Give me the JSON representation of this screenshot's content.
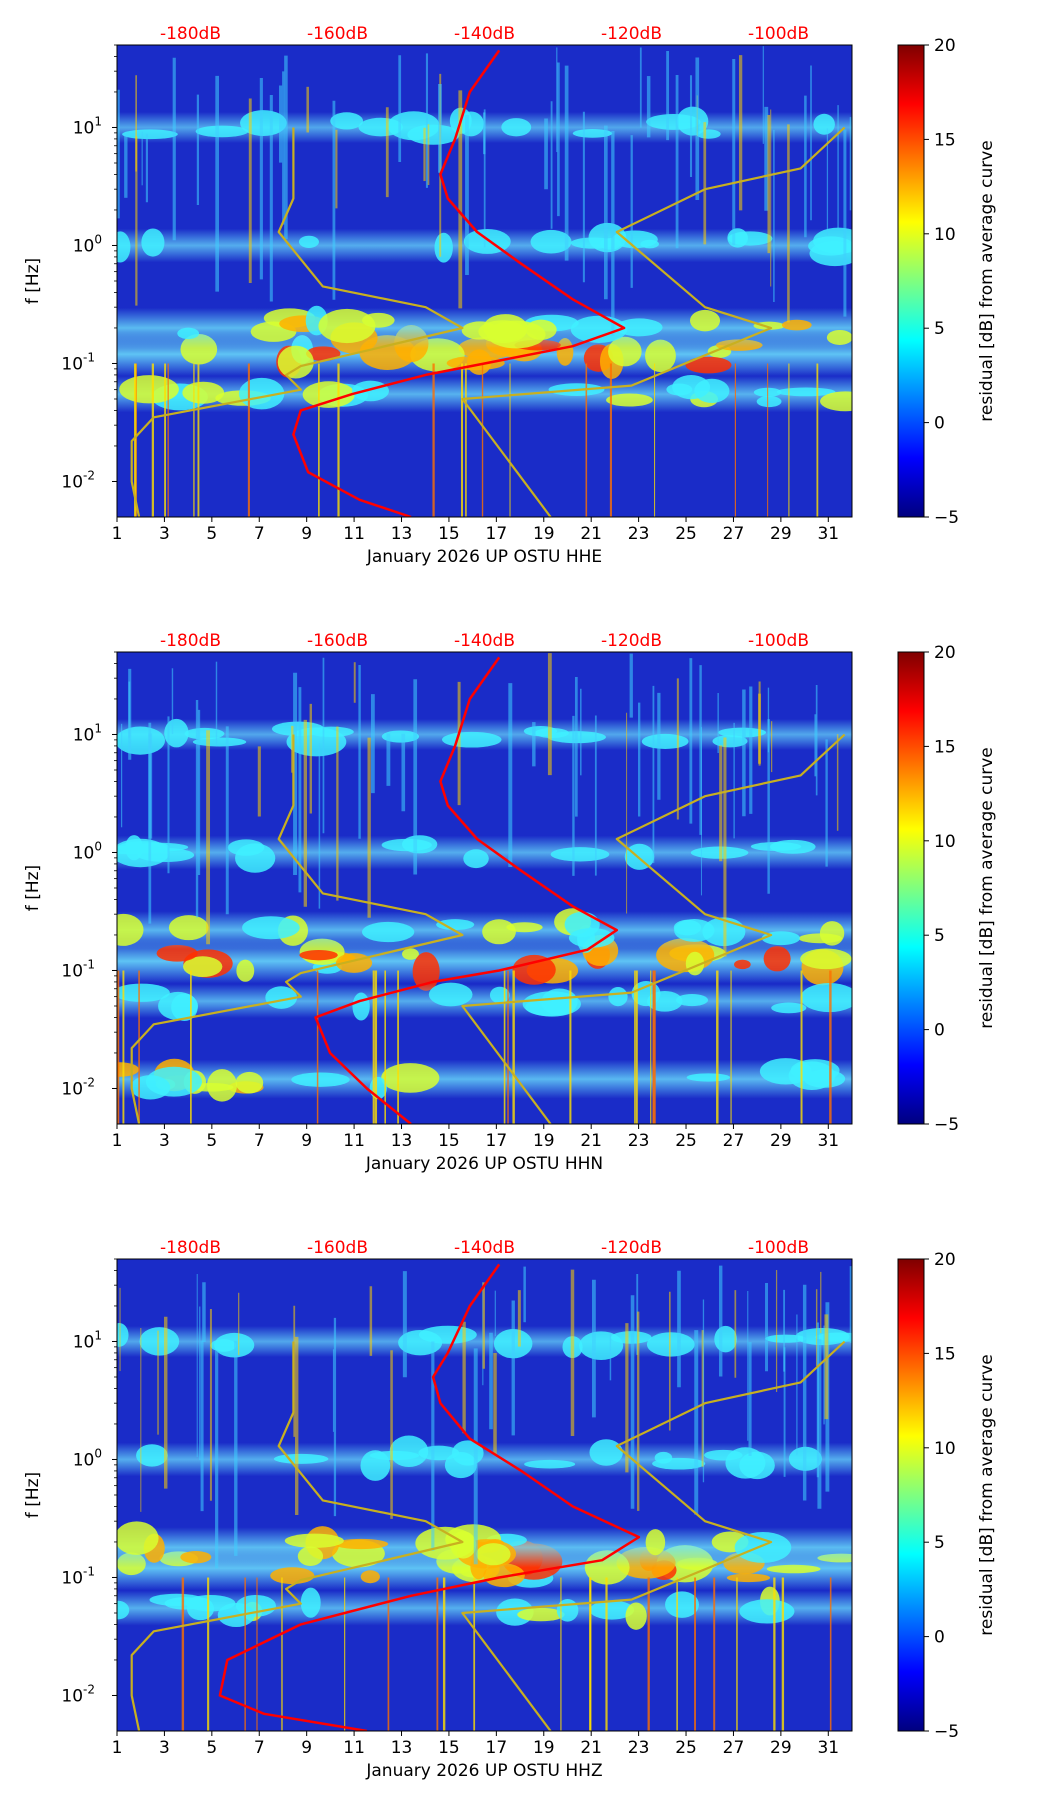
{
  "figure": {
    "month": "January 2026",
    "network": "UP",
    "station": "OSTU"
  },
  "colormap": {
    "stops": [
      "#00007f",
      "#0000ff",
      "#007fff",
      "#00ffff",
      "#7fff7f",
      "#ffff00",
      "#ff7f00",
      "#ff0000",
      "#7f0000"
    ],
    "curve_colors": {
      "psd": "#ff0000",
      "noise_models": "#c8b020"
    },
    "label_color": "#ff0000"
  },
  "chart_data": [
    {
      "type": "heatmap",
      "channel": "HHE",
      "xlabel": "January 2026 UP OSTU  HHE",
      "ylabel": "f [Hz]",
      "x_ticks": [
        "1",
        "3",
        "5",
        "7",
        "9",
        "11",
        "13",
        "15",
        "17",
        "19",
        "21",
        "23",
        "25",
        "27",
        "29",
        "31"
      ],
      "x_range": [
        1,
        32
      ],
      "y_ticks": [
        "10^-2",
        "10^-1",
        "10^0",
        "10^1"
      ],
      "y_range_hz": [
        0.005,
        50
      ],
      "top_db_labels": [
        "-180dB",
        "-160dB",
        "-140dB",
        "-120dB",
        "-100dB"
      ],
      "db_axis_range": [
        -190,
        -90
      ],
      "colorbar": {
        "label": "residual [dB] from average curve",
        "ticks": [
          "20",
          "15",
          "10",
          "5",
          "0",
          "−5"
        ],
        "range": [
          -5,
          20
        ]
      },
      "heat_bands": [
        {
          "f_hz": 0.12,
          "level": 0.85
        },
        {
          "f_hz": 0.2,
          "level": 0.7
        },
        {
          "f_hz": 0.055,
          "level": 0.55
        },
        {
          "f_hz": 1.0,
          "level": 0.45
        },
        {
          "f_hz": 10,
          "level": 0.35
        }
      ],
      "series": [
        {
          "name": "average PSD",
          "points_db_hz": [
            [
              -138,
              45
            ],
            [
              -142,
              20
            ],
            [
              -144,
              8
            ],
            [
              -146,
              4
            ],
            [
              -145,
              2.5
            ],
            [
              -141,
              1.3
            ],
            [
              -135,
              0.7
            ],
            [
              -128,
              0.35
            ],
            [
              -121,
              0.2
            ],
            [
              -128,
              0.14
            ],
            [
              -140,
              0.1
            ],
            [
              -148,
              0.08
            ],
            [
              -158,
              0.055
            ],
            [
              -165,
              0.04
            ],
            [
              -166,
              0.025
            ],
            [
              -164,
              0.012
            ],
            [
              -157,
              0.007
            ],
            [
              -150,
              0.005
            ]
          ]
        },
        {
          "name": "low noise model",
          "points_db_hz": [
            [
              -187,
              0.005
            ],
            [
              -188,
              0.01
            ],
            [
              -188,
              0.022
            ],
            [
              -185,
              0.035
            ],
            [
              -165,
              0.06
            ],
            [
              -167,
              0.08
            ],
            [
              -165,
              0.095
            ],
            [
              -143,
              0.2
            ],
            [
              -148,
              0.3
            ],
            [
              -162,
              0.45
            ],
            [
              -168,
              1.3
            ],
            [
              -166,
              2.5
            ],
            [
              -166,
              10
            ]
          ]
        },
        {
          "name": "high noise model",
          "points_db_hz": [
            [
              -131,
              0.005
            ],
            [
              -143,
              0.05
            ],
            [
              -120,
              0.065
            ],
            [
              -101,
              0.2
            ],
            [
              -110,
              0.3
            ],
            [
              -122,
              1.3
            ],
            [
              -110,
              3
            ],
            [
              -97,
              4.5
            ],
            [
              -91,
              10
            ]
          ]
        }
      ]
    },
    {
      "type": "heatmap",
      "channel": "HHN",
      "xlabel": "January 2026 UP OSTU  HHN",
      "ylabel": "f [Hz]",
      "x_ticks": [
        "1",
        "3",
        "5",
        "7",
        "9",
        "11",
        "13",
        "15",
        "17",
        "19",
        "21",
        "23",
        "25",
        "27",
        "29",
        "31"
      ],
      "x_range": [
        1,
        32
      ],
      "y_ticks": [
        "10^-2",
        "10^-1",
        "10^0",
        "10^1"
      ],
      "y_range_hz": [
        0.005,
        50
      ],
      "top_db_labels": [
        "-180dB",
        "-160dB",
        "-140dB",
        "-120dB",
        "-100dB"
      ],
      "db_axis_range": [
        -190,
        -90
      ],
      "colorbar": {
        "label": "residual [dB] from average curve",
        "ticks": [
          "20",
          "15",
          "10",
          "5",
          "0",
          "−5"
        ],
        "range": [
          -5,
          20
        ]
      },
      "heat_bands": [
        {
          "f_hz": 0.12,
          "level": 0.85
        },
        {
          "f_hz": 0.22,
          "level": 0.6
        },
        {
          "f_hz": 0.055,
          "level": 0.45
        },
        {
          "f_hz": 0.012,
          "level": 0.65
        },
        {
          "f_hz": 1.0,
          "level": 0.45
        },
        {
          "f_hz": 10,
          "level": 0.35
        }
      ],
      "series": [
        {
          "name": "average PSD",
          "points_db_hz": [
            [
              -138,
              45
            ],
            [
              -142,
              20
            ],
            [
              -144,
              8
            ],
            [
              -146,
              4
            ],
            [
              -145,
              2.5
            ],
            [
              -141,
              1.3
            ],
            [
              -135,
              0.7
            ],
            [
              -128,
              0.35
            ],
            [
              -122,
              0.22
            ],
            [
              -126,
              0.15
            ],
            [
              -138,
              0.1
            ],
            [
              -147,
              0.08
            ],
            [
              -157,
              0.055
            ],
            [
              -163,
              0.04
            ],
            [
              -161,
              0.02
            ],
            [
              -156,
              0.01
            ],
            [
              -150,
              0.005
            ]
          ]
        },
        {
          "name": "low noise model",
          "points_db_hz": [
            [
              -187,
              0.005
            ],
            [
              -188,
              0.01
            ],
            [
              -188,
              0.022
            ],
            [
              -185,
              0.035
            ],
            [
              -165,
              0.06
            ],
            [
              -167,
              0.08
            ],
            [
              -165,
              0.095
            ],
            [
              -143,
              0.2
            ],
            [
              -148,
              0.3
            ],
            [
              -162,
              0.45
            ],
            [
              -168,
              1.3
            ],
            [
              -166,
              2.5
            ],
            [
              -166,
              10
            ]
          ]
        },
        {
          "name": "high noise model",
          "points_db_hz": [
            [
              -131,
              0.005
            ],
            [
              -143,
              0.05
            ],
            [
              -120,
              0.065
            ],
            [
              -101,
              0.2
            ],
            [
              -110,
              0.3
            ],
            [
              -122,
              1.3
            ],
            [
              -110,
              3
            ],
            [
              -97,
              4.5
            ],
            [
              -91,
              10
            ]
          ]
        }
      ]
    },
    {
      "type": "heatmap",
      "channel": "HHZ",
      "xlabel": "January 2026 UP OSTU  HHZ",
      "ylabel": "f [Hz]",
      "x_ticks": [
        "1",
        "3",
        "5",
        "7",
        "9",
        "11",
        "13",
        "15",
        "17",
        "19",
        "21",
        "23",
        "25",
        "27",
        "29",
        "31"
      ],
      "x_range": [
        1,
        32
      ],
      "y_ticks": [
        "10^-2",
        "10^-1",
        "10^0",
        "10^1"
      ],
      "y_range_hz": [
        0.005,
        50
      ],
      "top_db_labels": [
        "-180dB",
        "-160dB",
        "-140dB",
        "-120dB",
        "-100dB"
      ],
      "db_axis_range": [
        -190,
        -90
      ],
      "colorbar": {
        "label": "residual [dB] from average curve",
        "ticks": [
          "20",
          "15",
          "10",
          "5",
          "0",
          "−5"
        ],
        "range": [
          -5,
          20
        ]
      },
      "heat_bands": [
        {
          "f_hz": 0.12,
          "level": 0.85
        },
        {
          "f_hz": 0.18,
          "level": 0.7
        },
        {
          "f_hz": 0.055,
          "level": 0.5
        },
        {
          "f_hz": 1.0,
          "level": 0.45
        },
        {
          "f_hz": 10,
          "level": 0.35
        }
      ],
      "series": [
        {
          "name": "average PSD",
          "points_db_hz": [
            [
              -138,
              45
            ],
            [
              -142,
              20
            ],
            [
              -145,
              8
            ],
            [
              -147,
              5
            ],
            [
              -146,
              3
            ],
            [
              -142,
              1.5
            ],
            [
              -135,
              0.8
            ],
            [
              -128,
              0.4
            ],
            [
              -119,
              0.22
            ],
            [
              -124,
              0.14
            ],
            [
              -138,
              0.1
            ],
            [
              -150,
              0.07
            ],
            [
              -165,
              0.04
            ],
            [
              -175,
              0.02
            ],
            [
              -176,
              0.01
            ],
            [
              -170,
              0.007
            ],
            [
              -156,
              0.005
            ]
          ]
        },
        {
          "name": "low noise model",
          "points_db_hz": [
            [
              -187,
              0.005
            ],
            [
              -188,
              0.01
            ],
            [
              -188,
              0.022
            ],
            [
              -185,
              0.035
            ],
            [
              -165,
              0.06
            ],
            [
              -167,
              0.08
            ],
            [
              -165,
              0.095
            ],
            [
              -143,
              0.2
            ],
            [
              -148,
              0.3
            ],
            [
              -162,
              0.45
            ],
            [
              -168,
              1.3
            ],
            [
              -166,
              2.5
            ],
            [
              -166,
              10
            ]
          ]
        },
        {
          "name": "high noise model",
          "points_db_hz": [
            [
              -131,
              0.005
            ],
            [
              -143,
              0.05
            ],
            [
              -120,
              0.065
            ],
            [
              -101,
              0.2
            ],
            [
              -110,
              0.3
            ],
            [
              -122,
              1.3
            ],
            [
              -110,
              3
            ],
            [
              -97,
              4.5
            ],
            [
              -91,
              10
            ]
          ]
        }
      ]
    }
  ]
}
